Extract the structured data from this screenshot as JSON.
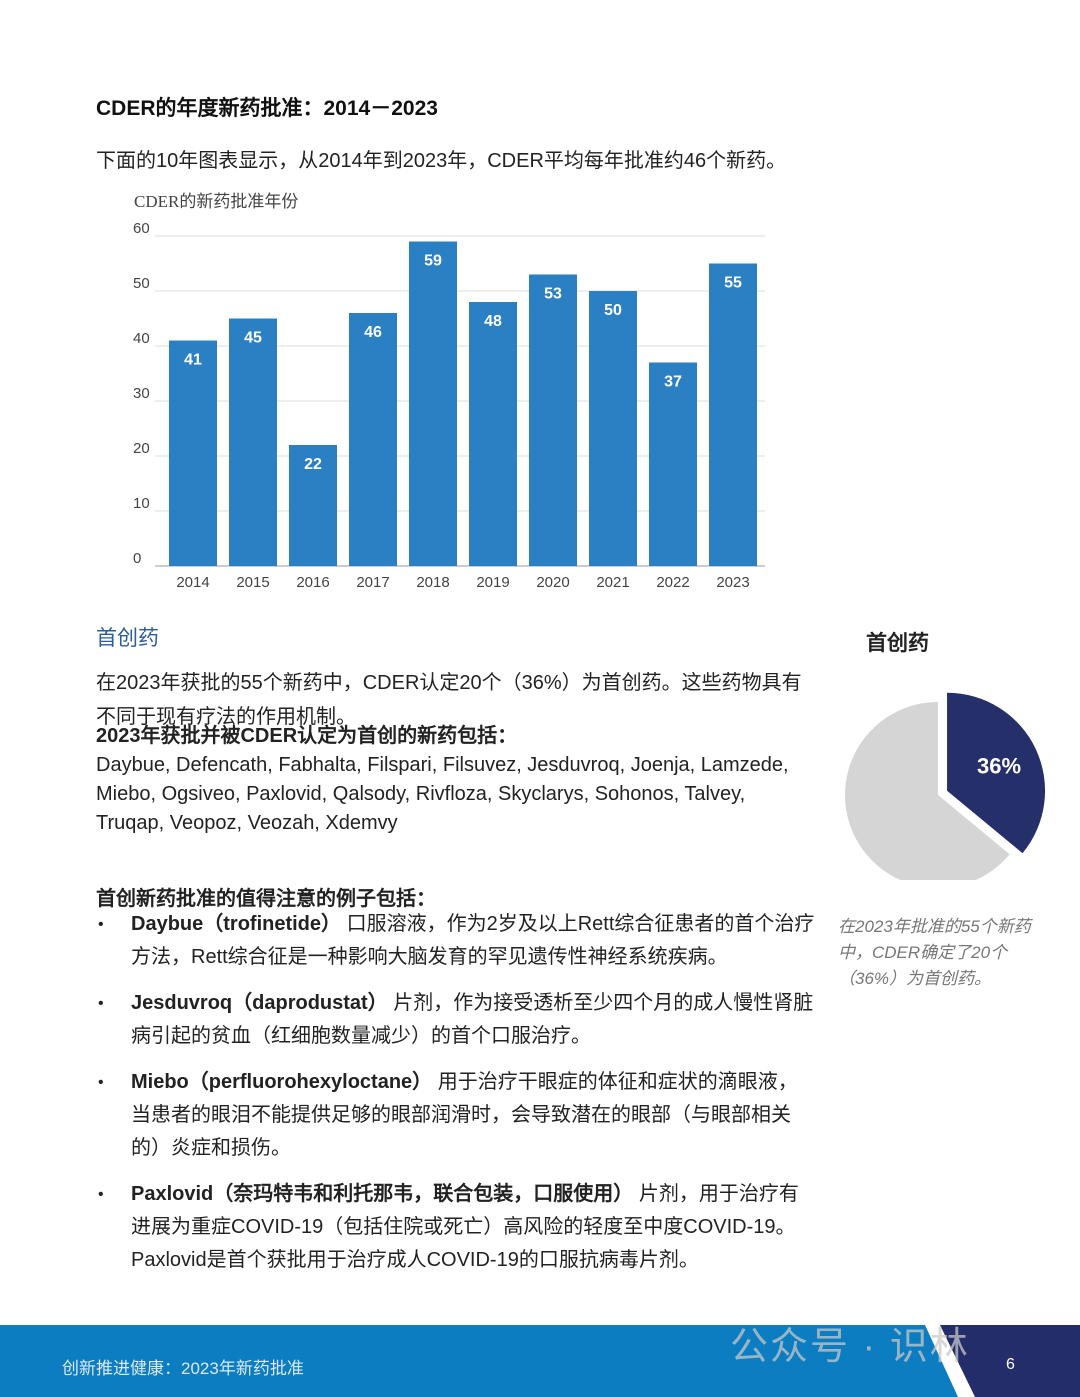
{
  "heading": "CDER的年度新药批准：2014－2023",
  "intro": "下面的10年图表显示，从2014年到2023年，CDER平均每年批准约46个新药。",
  "chart_data": {
    "type": "bar",
    "title": "CDER的新药批准年份",
    "categories": [
      "2014",
      "2015",
      "2016",
      "2017",
      "2018",
      "2019",
      "2020",
      "2021",
      "2022",
      "2023"
    ],
    "values": [
      41,
      45,
      22,
      46,
      59,
      48,
      53,
      50,
      37,
      55
    ],
    "ylim": [
      0,
      60
    ],
    "yticks": [
      "0",
      "10",
      "20",
      "30",
      "40",
      "50",
      "60"
    ],
    "grid": true,
    "bar_color": "#2b80c4",
    "data_labels": true
  },
  "first_in_class": {
    "section_title": "首创药",
    "paragraph": "在2023年获批的55个新药中，CDER认定20个（36%）为首创药。这些药物具有不同于现有疗法的作用机制。",
    "list_heading": "2023年获批并被CDER认定为首创的新药包括：",
    "list": "Daybue, Defencath, Fabhalta, Filspari, Filsuvez, Jesduvroq, Joenja, Lamzede, Miebo, Ogsiveo, Paxlovid, Qalsody, Rivfloza, Skyclarys, Sohonos, Talvey, Truqap, Veopoz, Veozah, Xdemvy",
    "examples_heading": "首创新药批准的值得注意的例子包括：",
    "examples": [
      {
        "name": "Daybue（trofinetide）",
        "text": " 口服溶液，作为2岁及以上Rett综合征患者的首个治疗方法，Rett综合征是一种影响大脑发育的罕见遗传性神经系统疾病。"
      },
      {
        "name": "Jesduvroq（daprodustat）",
        "text": " 片剂，作为接受透析至少四个月的成人慢性肾脏病引起的贫血（红细胞数量减少）的首个口服治疗。"
      },
      {
        "name": "Miebo（perfluorohexyloctane）",
        "text": " 用于治疗干眼症的体征和症状的滴眼液，当患者的眼泪不能提供足够的眼部润滑时，会导致潜在的眼部（与眼部相关的）炎症和损伤。"
      },
      {
        "name": "Paxlovid（奈玛特韦和利托那韦，联合包装，口服使用）",
        "text": " 片剂，用于治疗有进展为重症COVID-19（包括住院或死亡）高风险的轻度至中度COVID-19。Paxlovid是首个获批用于治疗成人COVID-19的口服抗病毒片剂。"
      }
    ]
  },
  "pie": {
    "title": "首创药",
    "type": "pie",
    "values": [
      36,
      64
    ],
    "label": "36%",
    "colors": [
      "#25306b",
      "#d5d5d5"
    ],
    "caption": "在2023年批准的55个新药中，CDER确定了20个（36%）为首创药。"
  },
  "footer": {
    "text": "创新推进健康：2023年新药批准",
    "page": "6",
    "watermark": "公众号 · 识林"
  }
}
